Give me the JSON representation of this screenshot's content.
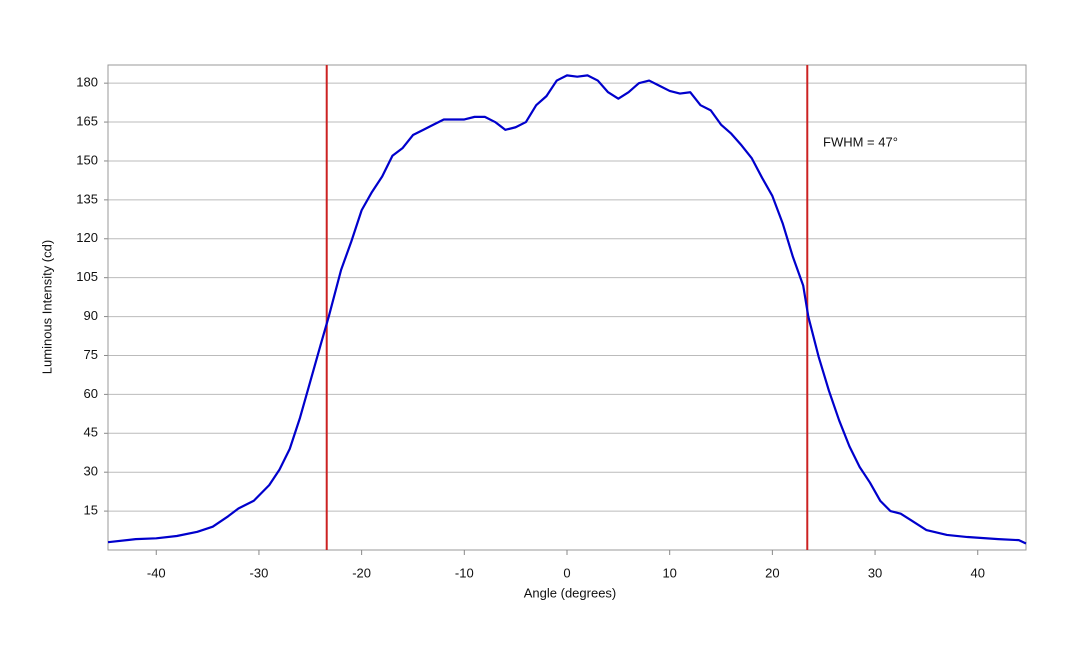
{
  "chart_data": {
    "type": "line",
    "x_label": "Angle (degrees)",
    "y_label": "Luminous Intensity (cd)",
    "annotation": "FWHM = 47°",
    "x": [
      -44.7,
      -42,
      -40,
      -38,
      -36,
      -34.5,
      -33,
      -32,
      -30.5,
      -29,
      -28,
      -27,
      -26,
      -25,
      -24,
      -23.2,
      -22,
      -21,
      -20,
      -19,
      -18,
      -17,
      -16,
      -15,
      -14,
      -13,
      -12,
      -11,
      -10,
      -9,
      -8,
      -7,
      -6,
      -5,
      -4,
      -3,
      -2,
      -1,
      0,
      1,
      2,
      3,
      4,
      5,
      6,
      7,
      8,
      9,
      10,
      11,
      12,
      13,
      14,
      15,
      16,
      17,
      18,
      19,
      20,
      21,
      22,
      23,
      23.5,
      24.5,
      25.5,
      26.5,
      27.5,
      28.5,
      29.5,
      30.5,
      31.5,
      32.5,
      33.5,
      35,
      37,
      39,
      42,
      44,
      44.7
    ],
    "series": [
      {
        "color": "#0000cc",
        "values": [
          3,
          4.2,
          4.5,
          5.4,
          7,
          9,
          13,
          16,
          19,
          25,
          31,
          39,
          51,
          65,
          79,
          90,
          108,
          119,
          131,
          138,
          144,
          152,
          155,
          160,
          162,
          164,
          166,
          166,
          166,
          167,
          167,
          165,
          162,
          163,
          165,
          171.5,
          175,
          181,
          183,
          182.5,
          183,
          181,
          176.5,
          174,
          176.5,
          180,
          181,
          179,
          177,
          176,
          176.5,
          171.5,
          169.5,
          164,
          160.5,
          156,
          151,
          143.5,
          136.5,
          126,
          113,
          102,
          90,
          74.6,
          61.5,
          50,
          40,
          32,
          26,
          19,
          15,
          14,
          11.5,
          7.7,
          5.8,
          5,
          4.2,
          3.8,
          2.5
        ]
      }
    ],
    "vlines": [
      -23.4,
      23.4
    ],
    "vline_color": "#cc2222",
    "xlim": [
      -44.7,
      44.7
    ],
    "ylim": [
      0,
      187
    ],
    "xticks": [
      -40,
      -30,
      -20,
      -10,
      0,
      10,
      20,
      30,
      40
    ],
    "yticks": [
      15,
      30,
      45,
      60,
      75,
      90,
      105,
      120,
      135,
      150,
      165,
      180
    ],
    "grid": true
  }
}
